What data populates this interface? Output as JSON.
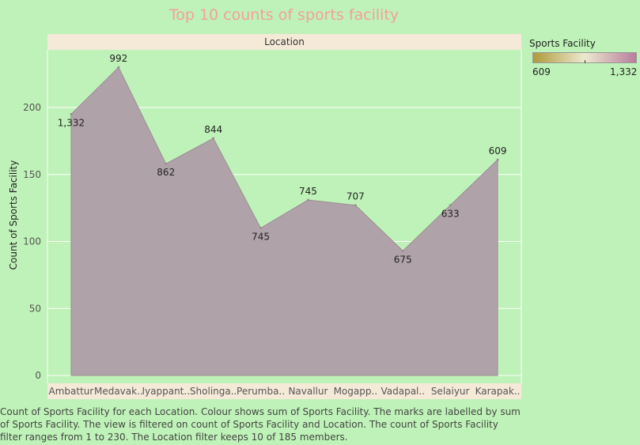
{
  "title": "Top 10 counts of sports facility",
  "column_header": "Location",
  "ylabel": "Count of Sports Facility",
  "legend": {
    "title": "Sports Facility",
    "min_label": "609",
    "max_label": "1,332",
    "color_low": "#b09a3a",
    "color_mid": "#ece9cf",
    "color_high": "#b87e9c"
  },
  "caption": "Count of Sports Facility for each Location.  Colour shows sum of Sports Facility.  The marks are labelled by sum of Sports Facility.  The view is filtered on count of Sports Facility and Location. The count of Sports Facility filter ranges from 1 to 230. The Location filter keeps 10 of 185 members.",
  "colors": {
    "background": "#bff2b8",
    "area_fill": "#b0a2a9",
    "area_stroke": "#9b8e95",
    "header_band": "#f5ead8",
    "title": "#f4a09b"
  },
  "chart_data": {
    "type": "area",
    "categories": [
      "Ambattur",
      "Medavak..",
      "Iyappant..",
      "Sholinga..",
      "Perumba..",
      "Navallur",
      "Mogapp..",
      "Vadapal..",
      "Selaiyur",
      "Karapak.."
    ],
    "values": [
      195,
      230,
      158,
      177,
      110,
      131,
      127,
      93,
      127,
      161
    ],
    "labels": [
      "1,332",
      "992",
      "862",
      "844",
      "745",
      "745",
      "707",
      "675",
      "633",
      "609"
    ],
    "ylim": [
      0,
      240
    ],
    "yticks": [
      0,
      50,
      100,
      150,
      200
    ],
    "grid": true
  }
}
